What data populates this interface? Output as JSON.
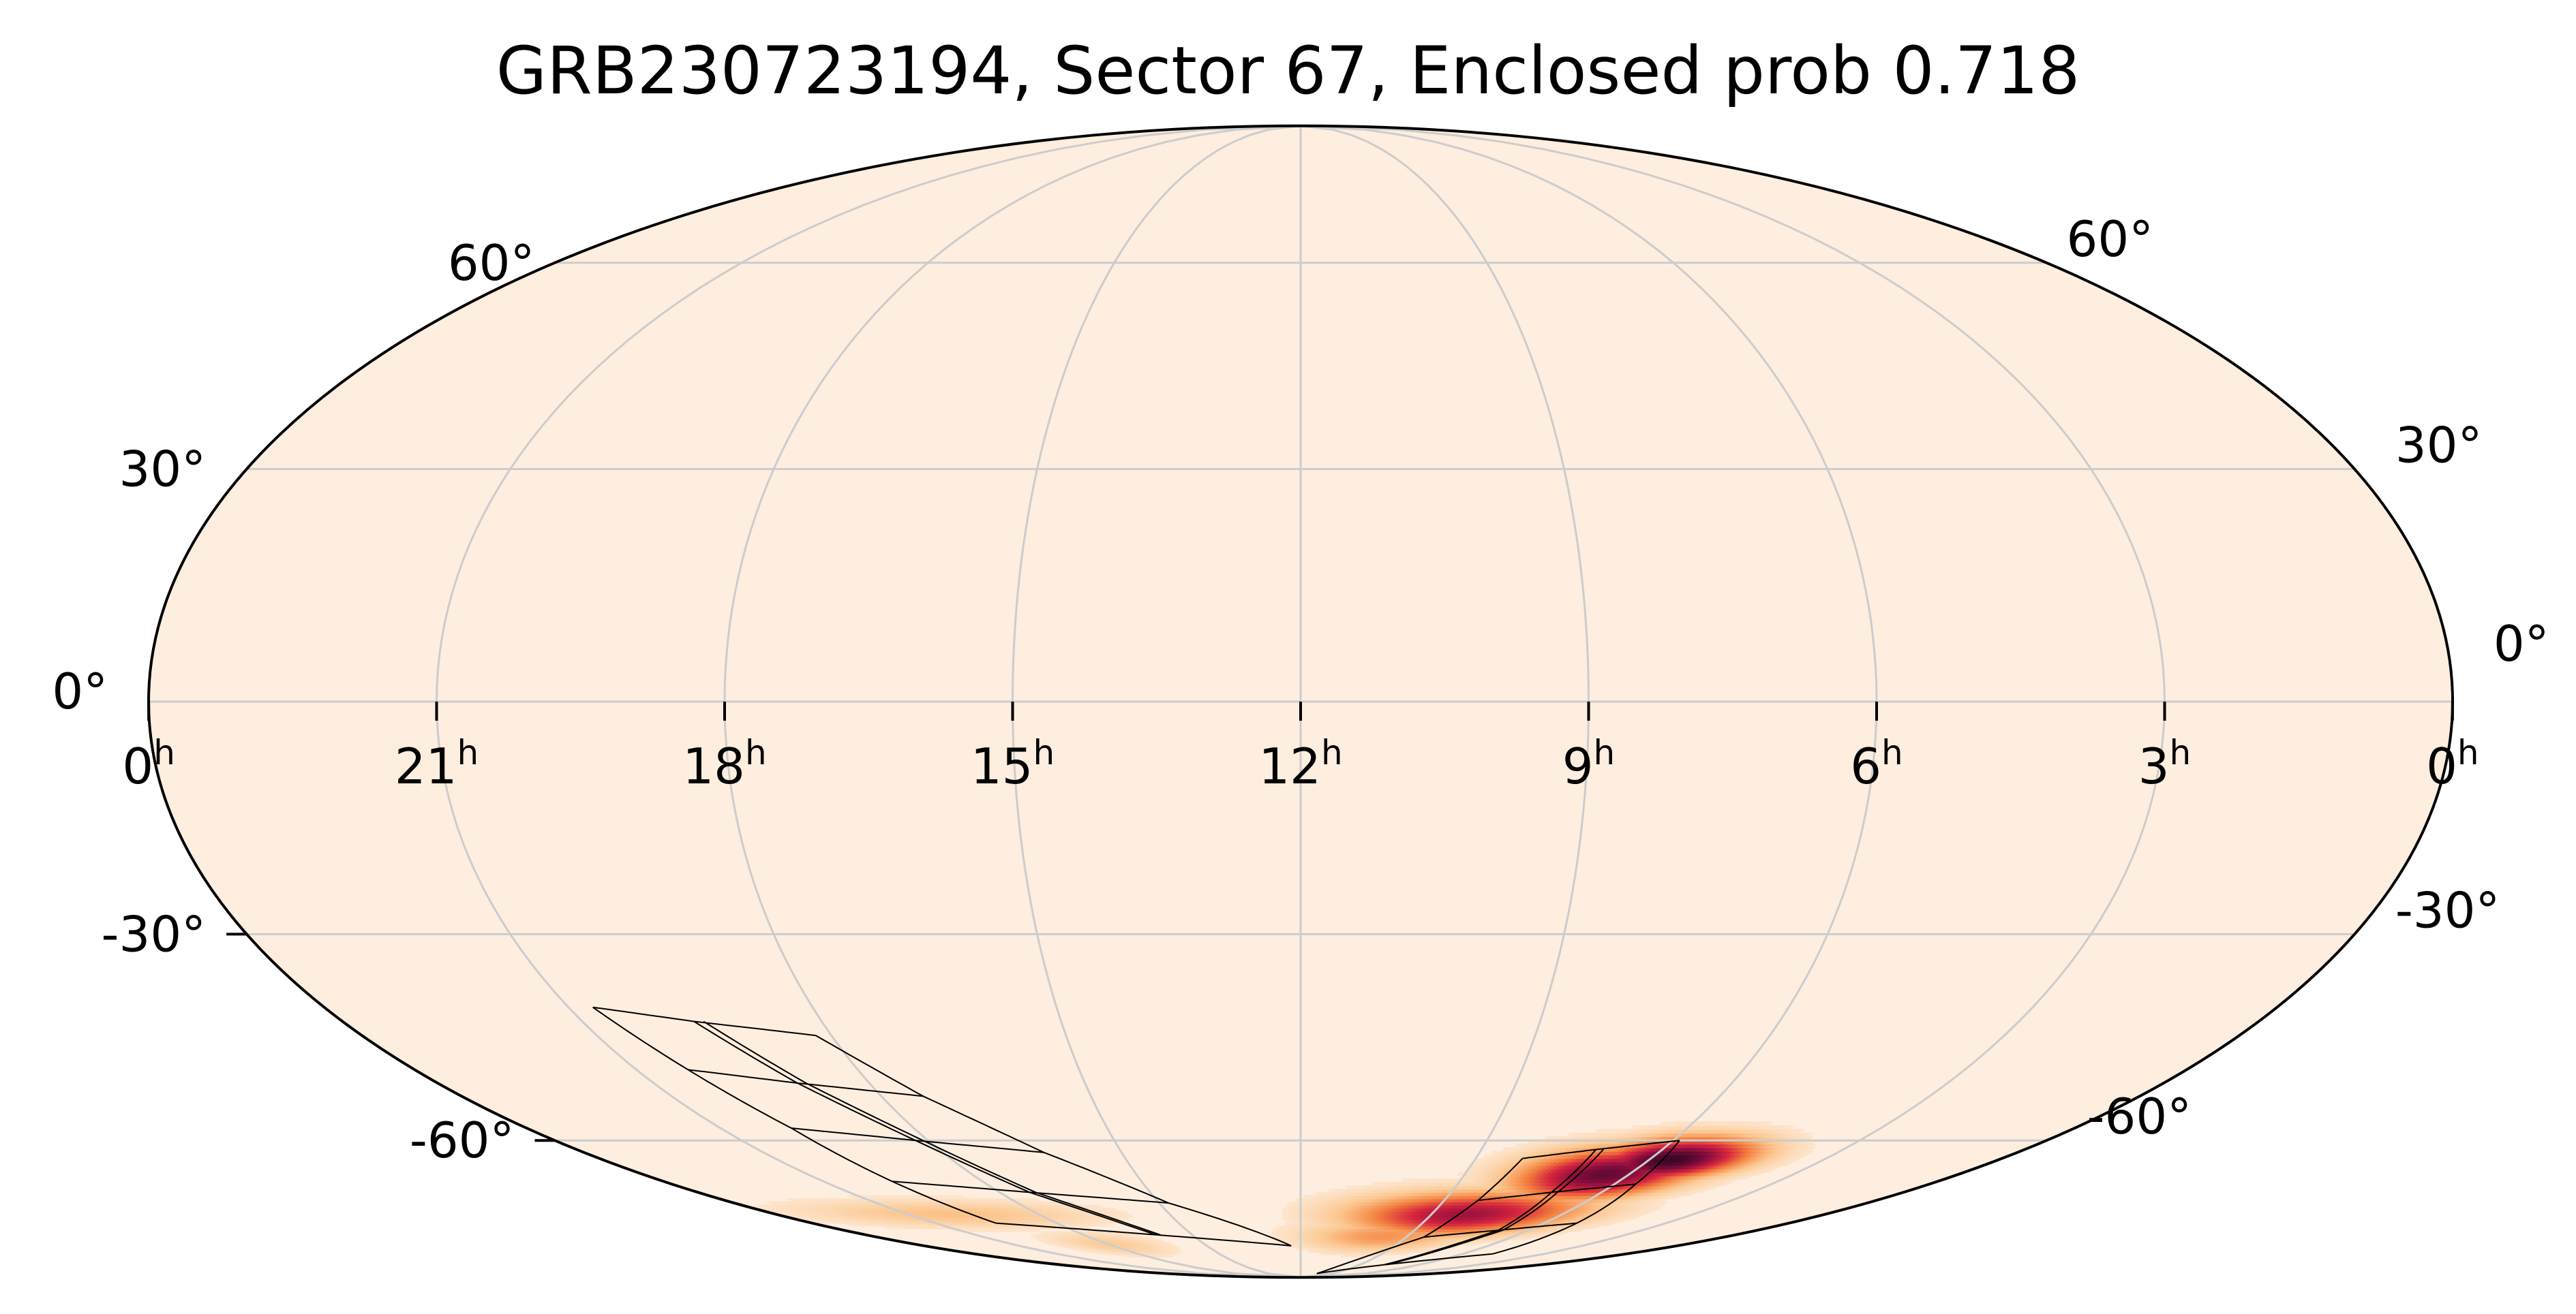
{
  "chart_data": {
    "type": "heatmap",
    "projection": "mollweide",
    "title": "GRB230723194, Sector 67, Enclosed prob 0.718",
    "ra_tick_labels": [
      {
        "hours": 0,
        "label": "0",
        "sup": "h"
      },
      {
        "hours": 21,
        "label": "21",
        "sup": "h"
      },
      {
        "hours": 18,
        "label": "18",
        "sup": "h"
      },
      {
        "hours": 15,
        "label": "15",
        "sup": "h"
      },
      {
        "hours": 12,
        "label": "12",
        "sup": "h"
      },
      {
        "hours": 9,
        "label": "9",
        "sup": "h"
      },
      {
        "hours": 6,
        "label": "6",
        "sup": "h"
      },
      {
        "hours": 3,
        "label": "3",
        "sup": "h"
      },
      {
        "hours": 0,
        "label": "0",
        "sup": "h"
      }
    ],
    "dec_tick_labels": [
      {
        "deg": 60,
        "label": "60°"
      },
      {
        "deg": 30,
        "label": "30°"
      },
      {
        "deg": 0,
        "label": "0°"
      },
      {
        "deg": -30,
        "label": "-30°"
      },
      {
        "deg": -60,
        "label": "-60°"
      }
    ],
    "grid": true,
    "background_color": "#fdeee0",
    "grid_color": "#cccccc",
    "colormap": [
      "#fdeee0",
      "#fcc790",
      "#f4823f",
      "#d7263e",
      "#8c0d3f",
      "#3a0826"
    ],
    "probability_regions": [
      {
        "ra_hours": 5.6,
        "dec_deg": -63.5,
        "sigma_ra_hours": 0.9,
        "sigma_dec_deg": 2.6,
        "peak": 1.0
      },
      {
        "ra_hours": 6.4,
        "dec_deg": -66.0,
        "sigma_ra_hours": 1.1,
        "sigma_dec_deg": 3.2,
        "peak": 0.9
      },
      {
        "ra_hours": 8.2,
        "dec_deg": -73.5,
        "sigma_ra_hours": 1.8,
        "sigma_dec_deg": 3.0,
        "peak": 0.75
      },
      {
        "ra_hours": 9.6,
        "dec_deg": -78.0,
        "sigma_ra_hours": 1.6,
        "sigma_dec_deg": 2.5,
        "peak": 0.35
      },
      {
        "ra_hours": 20.0,
        "dec_deg": -73.5,
        "sigma_ra_hours": 2.4,
        "sigma_dec_deg": 2.0,
        "peak": 0.22
      },
      {
        "ra_hours": 17.9,
        "dec_deg": -80.0,
        "sigma_ra_hours": 1.2,
        "sigma_dec_deg": 2.0,
        "peak": 0.18
      }
    ],
    "footprints": [
      {
        "name": "sector-left",
        "rows": [
          [
            [
              20.7,
              -40.0
            ],
            [
              19.6,
              -42.0
            ],
            [
              18.2,
              -44.0
            ]
          ],
          [
            [
              20.3,
              -49.0
            ],
            [
              19.0,
              -51.0
            ],
            [
              17.4,
              -53.0
            ]
          ],
          [
            [
              19.9,
              -58.0
            ],
            [
              18.2,
              -60.0
            ],
            [
              16.3,
              -62.0
            ]
          ],
          [
            [
              19.7,
              -67.0
            ],
            [
              17.4,
              -69.0
            ],
            [
              14.8,
              -71.0
            ]
          ],
          [
            [
              19.5,
              -75.0
            ],
            [
              16.0,
              -77.5
            ],
            [
              12.3,
              -80.0
            ]
          ]
        ]
      },
      {
        "name": "sector-right",
        "rows": [
          [
            [
              8.2,
              -63.0
            ],
            [
              7.1,
              -61.5
            ],
            [
              5.9,
              -60.0
            ]
          ],
          [
            [
              8.3,
              -70.5
            ],
            [
              7.0,
              -69.0
            ],
            [
              5.6,
              -67.5
            ]
          ],
          [
            [
              8.5,
              -78.0
            ],
            [
              6.8,
              -76.5
            ],
            [
              5.2,
              -75.0
            ]
          ],
          [
            [
              10.5,
              -88.0
            ],
            [
              7.8,
              -85.0
            ],
            [
              4.9,
              -82.0
            ]
          ]
        ]
      }
    ]
  }
}
